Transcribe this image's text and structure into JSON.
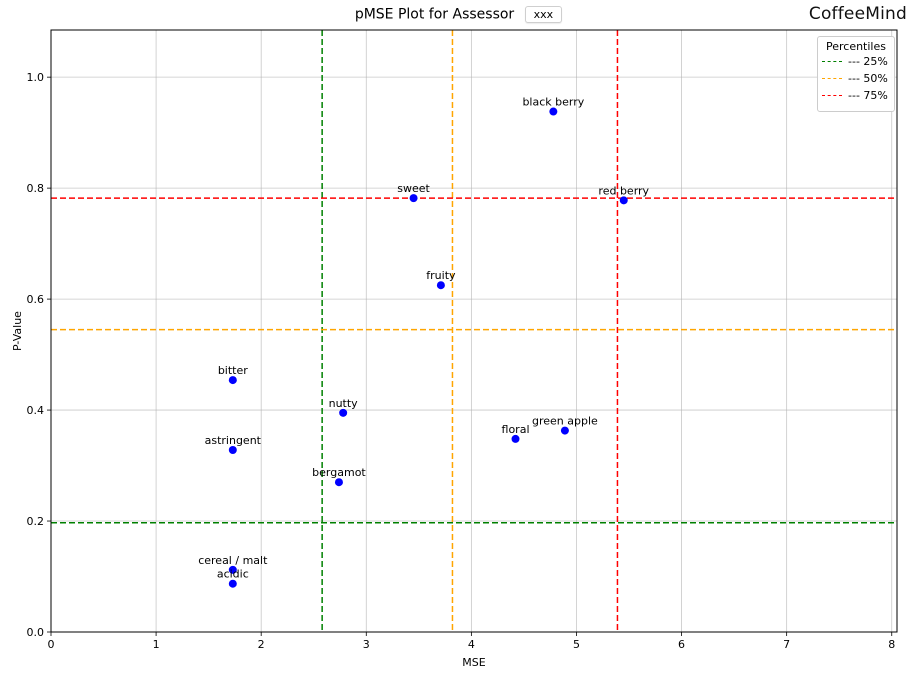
{
  "header": {
    "title": "pMSE Plot for Assessor",
    "assessor": "xxx",
    "brand": "CoffeeMind"
  },
  "legend": {
    "title": "Percentiles",
    "placement": "top-right",
    "items": [
      {
        "label": "--- 25%",
        "color": "#008000"
      },
      {
        "label": "--- 50%",
        "color": "#FFA500"
      },
      {
        "label": "--- 75%",
        "color": "#FF0000"
      }
    ]
  },
  "chart_data": {
    "type": "scatter",
    "xlabel": "MSE",
    "ylabel": "P-Value",
    "xlim": [
      0,
      8.05
    ],
    "ylim": [
      0,
      1.085
    ],
    "grid": true,
    "xticks": [
      0,
      1,
      2,
      3,
      4,
      5,
      6,
      7,
      8
    ],
    "yticks": [
      "0.0",
      "0.2",
      "0.4",
      "0.6",
      "0.8",
      "1.0"
    ],
    "point_color": "#0000FF",
    "points": [
      {
        "label": "black berry",
        "x": 4.78,
        "y": 0.938
      },
      {
        "label": "sweet",
        "x": 3.45,
        "y": 0.782
      },
      {
        "label": "red berry",
        "x": 5.45,
        "y": 0.778
      },
      {
        "label": "fruity",
        "x": 3.71,
        "y": 0.625
      },
      {
        "label": "bitter",
        "x": 1.73,
        "y": 0.454
      },
      {
        "label": "nutty",
        "x": 2.78,
        "y": 0.395
      },
      {
        "label": "green apple",
        "x": 4.89,
        "y": 0.363
      },
      {
        "label": "floral",
        "x": 4.42,
        "y": 0.348
      },
      {
        "label": "astringent",
        "x": 1.73,
        "y": 0.328
      },
      {
        "label": "bergamot",
        "x": 2.74,
        "y": 0.27
      },
      {
        "label": "cereal / malt",
        "x": 1.73,
        "y": 0.112
      },
      {
        "label": "acidic",
        "x": 1.73,
        "y": 0.087
      }
    ],
    "percentile_lines": {
      "x": [
        {
          "name": "25%",
          "value": 2.58,
          "color": "#008000"
        },
        {
          "name": "50%",
          "value": 3.82,
          "color": "#FFA500"
        },
        {
          "name": "75%",
          "value": 5.39,
          "color": "#FF0000"
        }
      ],
      "y": [
        {
          "name": "25%",
          "value": 0.197,
          "color": "#008000"
        },
        {
          "name": "50%",
          "value": 0.545,
          "color": "#FFA500"
        },
        {
          "name": "75%",
          "value": 0.782,
          "color": "#FF0000"
        }
      ]
    }
  }
}
